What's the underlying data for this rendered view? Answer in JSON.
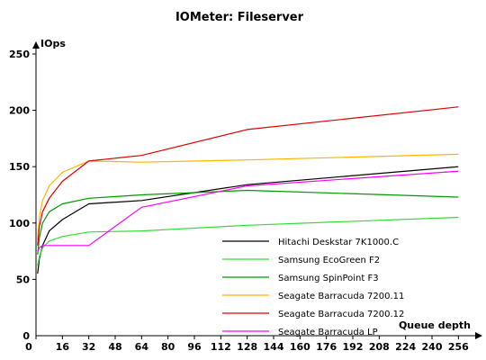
{
  "chart_data": {
    "type": "line",
    "title": "IOMeter: Fileserver",
    "xlabel": "Queue depth",
    "ylabel": "IOps",
    "xlim": [
      0,
      264
    ],
    "ylim": [
      0,
      250
    ],
    "x_ticks": [
      0,
      16,
      32,
      48,
      64,
      80,
      96,
      112,
      128,
      144,
      160,
      176,
      192,
      208,
      224,
      240,
      256
    ],
    "y_ticks": [
      0,
      50,
      100,
      150,
      200,
      250
    ],
    "grid": false,
    "legend_position": "bottom-right",
    "series": [
      {
        "name": "Hitachi Deskstar 7K1000.C",
        "color": "#000000",
        "points": [
          [
            1,
            55
          ],
          [
            2,
            68
          ],
          [
            4,
            80
          ],
          [
            8,
            93
          ],
          [
            16,
            103
          ],
          [
            32,
            117
          ],
          [
            64,
            120
          ],
          [
            128,
            134
          ],
          [
            256,
            150
          ]
        ]
      },
      {
        "name": "Samsung EcoGreen F2",
        "color": "#33dd33",
        "points": [
          [
            1,
            62
          ],
          [
            2,
            70
          ],
          [
            4,
            78
          ],
          [
            8,
            84
          ],
          [
            16,
            88
          ],
          [
            32,
            92
          ],
          [
            64,
            93
          ],
          [
            128,
            98
          ],
          [
            256,
            105
          ]
        ]
      },
      {
        "name": "Samsung SpinPoint F3",
        "color": "#009900",
        "points": [
          [
            1,
            72
          ],
          [
            2,
            87
          ],
          [
            4,
            100
          ],
          [
            8,
            110
          ],
          [
            16,
            117
          ],
          [
            32,
            122
          ],
          [
            64,
            125
          ],
          [
            128,
            129
          ],
          [
            256,
            123
          ]
        ]
      },
      {
        "name": "Seagate Barracuda 7200.11",
        "color": "#ffb300",
        "points": [
          [
            1,
            85
          ],
          [
            2,
            105
          ],
          [
            4,
            120
          ],
          [
            8,
            133
          ],
          [
            16,
            145
          ],
          [
            32,
            155
          ],
          [
            64,
            154
          ],
          [
            128,
            156
          ],
          [
            256,
            161
          ]
        ]
      },
      {
        "name": "Seagate Barracuda 7200.12",
        "color": "#dd0000",
        "points": [
          [
            1,
            80
          ],
          [
            2,
            97
          ],
          [
            4,
            110
          ],
          [
            8,
            122
          ],
          [
            16,
            137
          ],
          [
            32,
            155
          ],
          [
            64,
            160
          ],
          [
            128,
            183
          ],
          [
            256,
            203
          ]
        ]
      },
      {
        "name": "Seagate Barracuda LP",
        "color": "#ff00ff",
        "points": [
          [
            1,
            75
          ],
          [
            2,
            78
          ],
          [
            4,
            80
          ],
          [
            16,
            80
          ],
          [
            32,
            80
          ],
          [
            64,
            114
          ],
          [
            128,
            133
          ],
          [
            256,
            146
          ]
        ]
      }
    ]
  }
}
